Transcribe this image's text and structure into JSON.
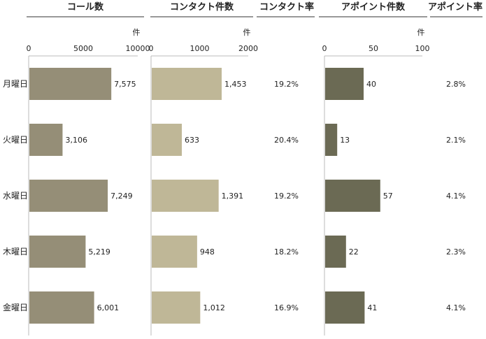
{
  "chart_data": {
    "type": "bar",
    "categories": [
      "月曜日",
      "火曜日",
      "水曜日",
      "木曜日",
      "金曜日"
    ],
    "panels": [
      {
        "id": "calls",
        "header": "コール数",
        "unit": "件",
        "xlim": [
          0,
          10000
        ],
        "ticks": [
          "0",
          "5000",
          "10000"
        ],
        "tick_values": [
          0,
          5000,
          10000
        ],
        "color": "#958e77",
        "values": [
          7575,
          3106,
          7249,
          5219,
          6001
        ],
        "labels": [
          "7,575",
          "3,106",
          "7,249",
          "5,219",
          "6,001"
        ]
      },
      {
        "id": "contacts",
        "header": "コンタクト件数",
        "unit": "件",
        "xlim": [
          0,
          2000
        ],
        "ticks": [
          "0",
          "1000",
          "2000"
        ],
        "tick_values": [
          0,
          1000,
          2000
        ],
        "color": "#bfb797",
        "values": [
          1453,
          633,
          1391,
          948,
          1012
        ],
        "labels": [
          "1,453",
          "633",
          "1,391",
          "948",
          "1,012"
        ]
      },
      {
        "id": "appointments",
        "header": "アポイント件数",
        "unit": "件",
        "xlim": [
          0,
          100
        ],
        "ticks": [
          "0",
          "50",
          "100"
        ],
        "tick_values": [
          0,
          50,
          100
        ],
        "color": "#6b6a54",
        "values": [
          40,
          13,
          57,
          22,
          41
        ],
        "labels": [
          "40",
          "13",
          "57",
          "22",
          "41"
        ]
      }
    ],
    "rate_columns": [
      {
        "id": "contact_rate",
        "header": "コンタクト率",
        "values": [
          "19.2%",
          "20.4%",
          "19.2%",
          "18.2%",
          "16.9%"
        ]
      },
      {
        "id": "appointment_rate",
        "header": "アポイント率",
        "values": [
          "2.8%",
          "2.1%",
          "4.1%",
          "2.3%",
          "4.1%"
        ]
      }
    ]
  }
}
